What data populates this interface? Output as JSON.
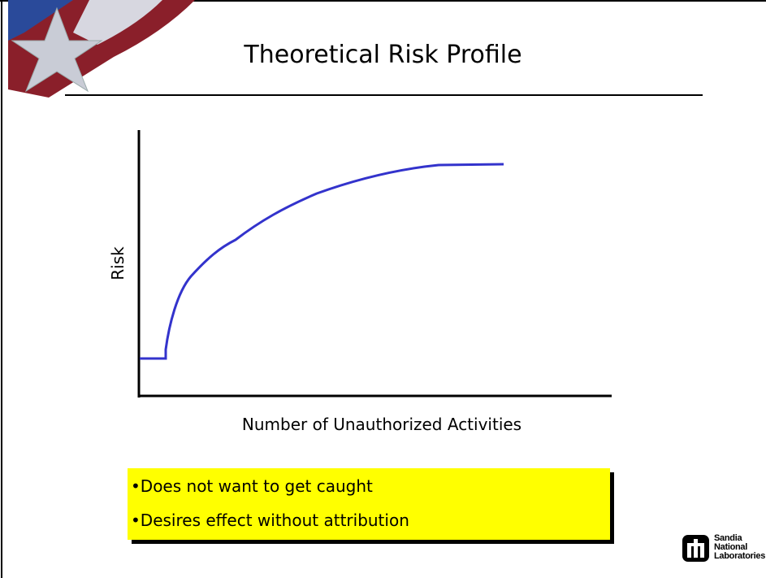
{
  "slide": {
    "title": "Theoretical Risk Profile",
    "figure": {
      "y_axis_label": "Risk",
      "x_axis_label": "Number of Unauthorized Activities"
    },
    "bullets": [
      "•Does not want to get caught",
      "•Desires effect without attribution"
    ],
    "logo": {
      "lines": [
        "Sandia",
        "National",
        "Laboratories"
      ]
    }
  }
}
